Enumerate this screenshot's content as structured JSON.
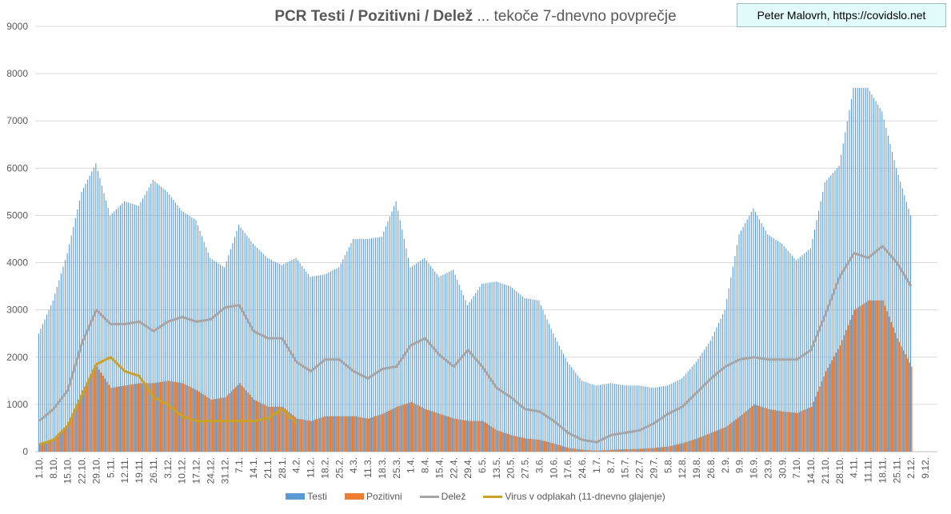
{
  "title_bold": "PCR Testi / Pozitivni / Delež",
  "title_rest": " ... tekoče 7-dnevno povprečje",
  "credit": "Peter Malovrh, https://covidslo.net",
  "chart_data": {
    "type": "bar",
    "title": "PCR Testi / Pozitivni / Delež ... tekoče 7-dnevno povprečje",
    "ylim": [
      0,
      9000
    ],
    "yticks": [
      "0",
      "1000",
      "2000",
      "3000",
      "4000",
      "5000",
      "6000",
      "7000",
      "8000",
      "9000"
    ],
    "grid": true,
    "legend": "bottom",
    "categories": [
      "1.10.",
      "8.10.",
      "15.10.",
      "22.10.",
      "29.10.",
      "5.11.",
      "12.11.",
      "19.11.",
      "26.11.",
      "3.12.",
      "10.12.",
      "17.12.",
      "24.12.",
      "31.12.",
      "7.1.",
      "14.1.",
      "21.1.",
      "28.1.",
      "4.2.",
      "11.2.",
      "18.2.",
      "25.2.",
      "4.3.",
      "11.3.",
      "18.3.",
      "25.3.",
      "1.4.",
      "8.4.",
      "15.4.",
      "22.4.",
      "29.4.",
      "6.5.",
      "13.5.",
      "20.5.",
      "27.5.",
      "3.6.",
      "10.6.",
      "17.6.",
      "24.6.",
      "1.7.",
      "8.7.",
      "15.7.",
      "22.7.",
      "29.7.",
      "5.8.",
      "12.8.",
      "19.8.",
      "26.8.",
      "2.9.",
      "9.9.",
      "16.9.",
      "23.9.",
      "30.9.",
      "7.10.",
      "14.10.",
      "21.10.",
      "28.10.",
      "4.11.",
      "11.11.",
      "18.11.",
      "25.11.",
      "2.12.",
      "9.12."
    ],
    "series": [
      {
        "name": "Testi",
        "kind": "bar",
        "color": "#5b9bd5",
        "values": [
          2500,
          3200,
          4200,
          5500,
          6100,
          5000,
          5300,
          5200,
          5750,
          5500,
          5100,
          4900,
          4100,
          3900,
          4800,
          4400,
          4100,
          3950,
          4100,
          3700,
          3750,
          3900,
          4500,
          4500,
          4550,
          5300,
          3900,
          4100,
          3700,
          3850,
          3100,
          3550,
          3600,
          3500,
          3250,
          3200,
          2500,
          1900,
          1500,
          1400,
          1450,
          1400,
          1400,
          1350,
          1400,
          1550,
          1900,
          2350,
          3000,
          4600,
          5150,
          4600,
          4400,
          4050,
          4300,
          5700,
          6050,
          7700,
          7700,
          7200,
          6000,
          5000,
          null
        ]
      },
      {
        "name": "Pozitivni",
        "kind": "bar",
        "color": "#ed7d31",
        "values": [
          150,
          250,
          600,
          1300,
          1800,
          1350,
          1400,
          1450,
          1450,
          1500,
          1450,
          1300,
          1100,
          1150,
          1450,
          1100,
          950,
          950,
          700,
          650,
          750,
          750,
          750,
          700,
          800,
          950,
          1050,
          900,
          800,
          700,
          650,
          650,
          450,
          350,
          280,
          250,
          170,
          80,
          40,
          20,
          40,
          50,
          60,
          80,
          110,
          180,
          280,
          400,
          520,
          750,
          1000,
          900,
          850,
          820,
          950,
          1700,
          2250,
          3000,
          3200,
          3200,
          2400,
          1800,
          null
        ]
      },
      {
        "name": "Delež",
        "kind": "line",
        "color": "#a5a5a5",
        "values": [
          650,
          900,
          1300,
          2300,
          3000,
          2700,
          2700,
          2750,
          2550,
          2750,
          2850,
          2750,
          2800,
          3050,
          3100,
          2550,
          2400,
          2400,
          1900,
          1700,
          1950,
          1950,
          1700,
          1550,
          1750,
          1800,
          2250,
          2400,
          2050,
          1800,
          2150,
          1800,
          1350,
          1150,
          900,
          850,
          650,
          400,
          250,
          200,
          350,
          400,
          450,
          600,
          800,
          950,
          1250,
          1550,
          1800,
          1950,
          2000,
          1950,
          1950,
          1950,
          2150,
          2900,
          3700,
          4200,
          4100,
          4350,
          4000,
          3500,
          null
        ]
      },
      {
        "name": "Virus v odplakah (11-dnevno glajenje)",
        "kind": "line",
        "color": "#c9a227",
        "values": [
          150,
          250,
          550,
          1200,
          1850,
          2000,
          1700,
          1600,
          1150,
          1000,
          750,
          650,
          650,
          650,
          650,
          650,
          700,
          900,
          600,
          null,
          null,
          null,
          null,
          null,
          null,
          null,
          null,
          null,
          null,
          null,
          null,
          null,
          null,
          null,
          null,
          null,
          null,
          null,
          null,
          null,
          null,
          null,
          null,
          null,
          null,
          null,
          null,
          null,
          null,
          null,
          null,
          null,
          null,
          null,
          null,
          null,
          null,
          null,
          null,
          null,
          null,
          null,
          null
        ]
      }
    ]
  }
}
